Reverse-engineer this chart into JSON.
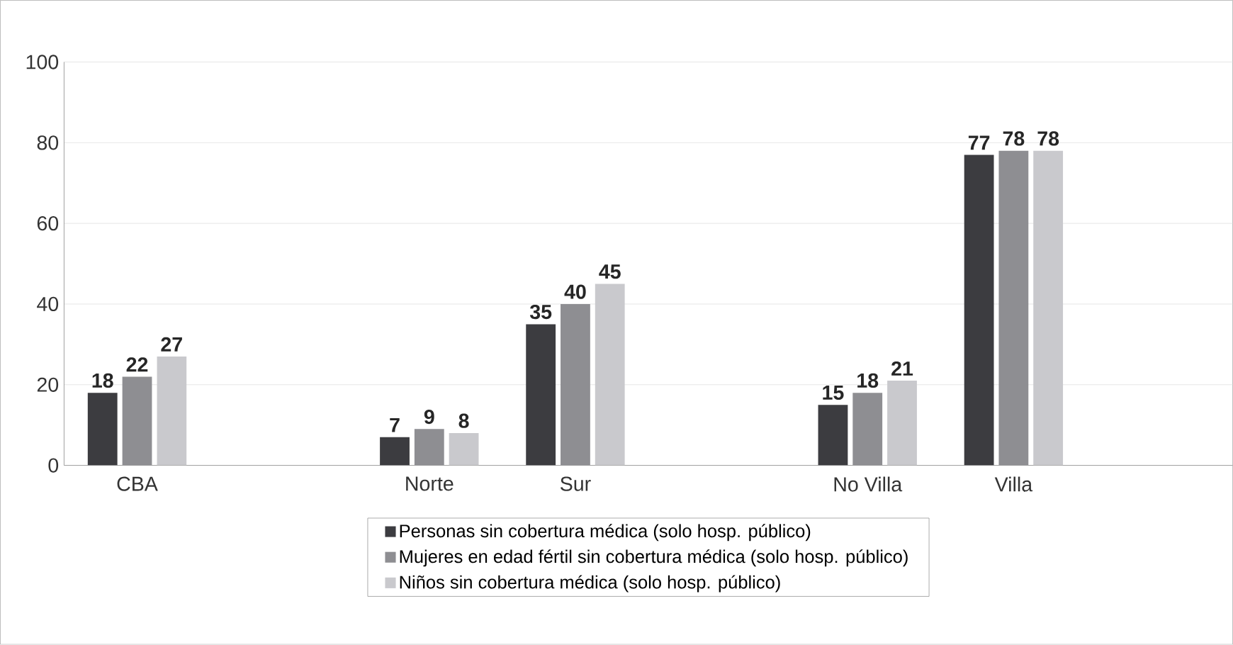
{
  "chart_data": {
    "type": "bar",
    "categories": [
      "CBA",
      null,
      "Norte",
      "Sur",
      null,
      "No Villa",
      "Villa",
      null
    ],
    "series": [
      {
        "name": "Personas sin cobertura médica (solo hosp. público)",
        "color": "#3c3c40",
        "values": [
          18,
          null,
          7,
          35,
          null,
          15,
          77,
          null
        ]
      },
      {
        "name": "Mujeres en edad fértil sin cobertura médica (solo hosp. público)",
        "color": "#8e8e92",
        "values": [
          22,
          null,
          9,
          40,
          null,
          18,
          78,
          null
        ]
      },
      {
        "name": "Niños sin cobertura médica (solo hosp. público)",
        "color": "#c9c9cd",
        "values": [
          27,
          null,
          8,
          45,
          null,
          21,
          78,
          null
        ]
      }
    ],
    "ylim": [
      0,
      100
    ],
    "yticks": [
      0,
      20,
      40,
      60,
      80,
      100
    ],
    "grid": "y",
    "legend": "bottom",
    "data_labels": true
  }
}
